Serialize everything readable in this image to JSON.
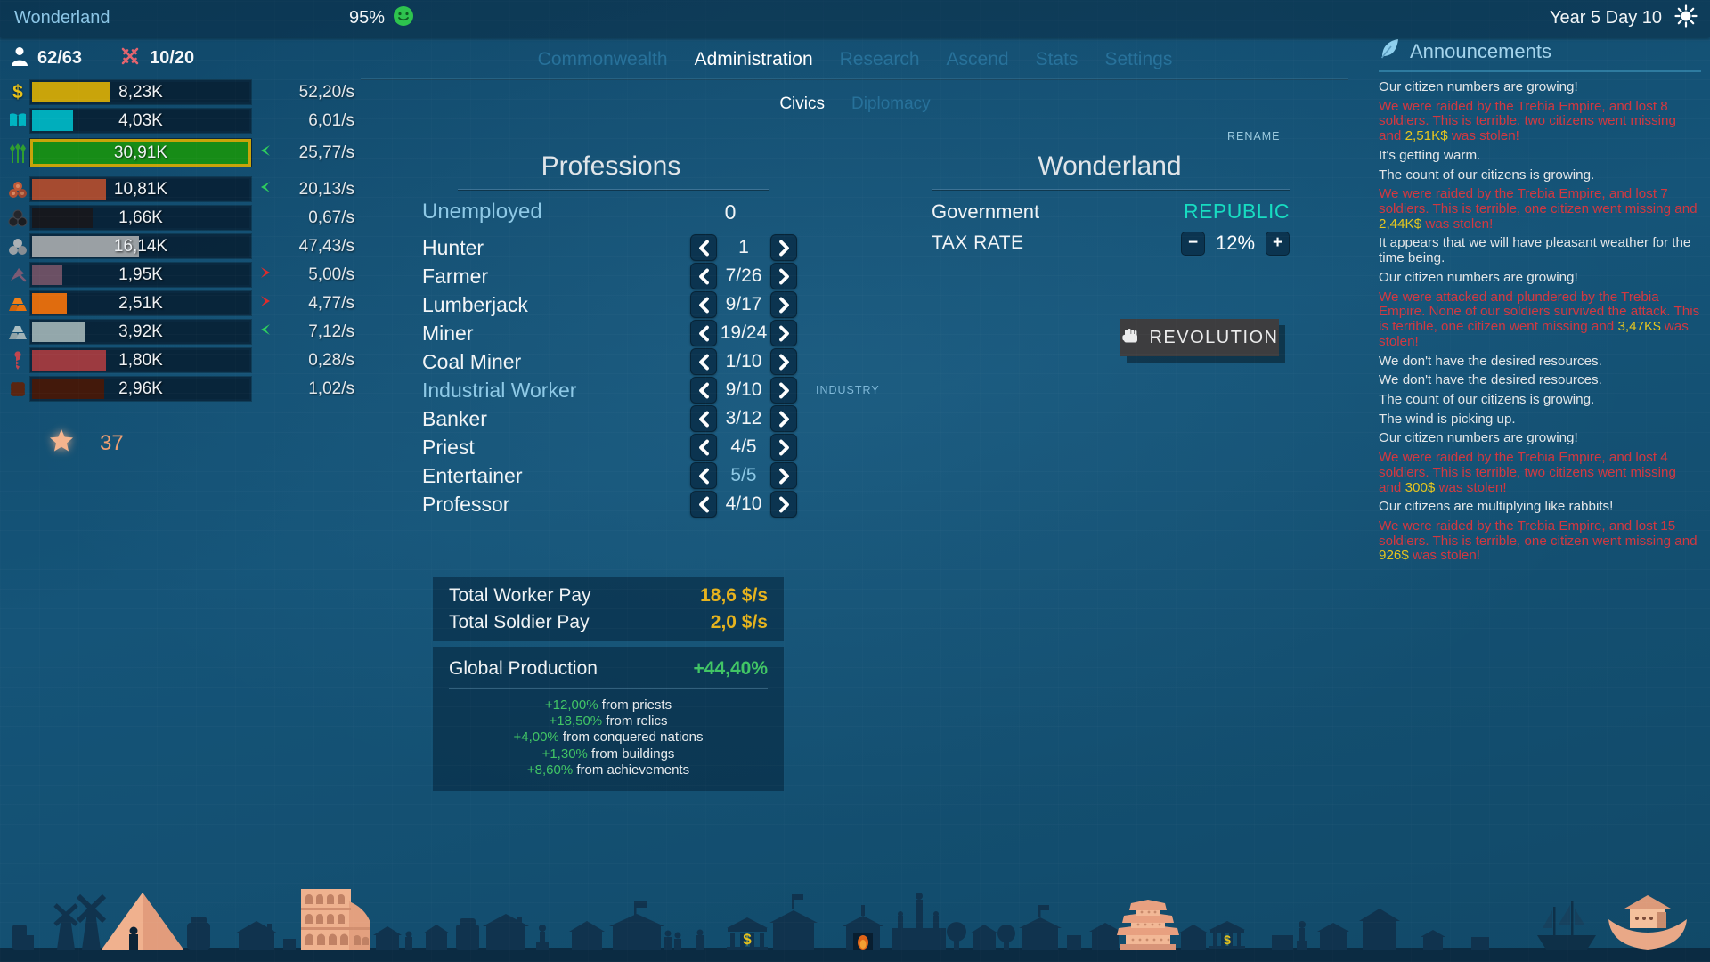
{
  "colors": {
    "accent_blue": "#8ec9e6",
    "cyan": "#17dcc1",
    "gold_border": "#c8a40a",
    "pay_yellow": "#e6b31e",
    "green": "#41c565",
    "alert_red": "#d23840",
    "alert_yellow": "#e6c51e"
  },
  "topbar": {
    "title": "Wonderland",
    "happiness": "95%",
    "date": "Year 5 Day 10"
  },
  "population": {
    "citizens": "62/63",
    "soldiers": "10/20"
  },
  "resources": [
    {
      "name": "money",
      "icon": "money-icon",
      "value": "8,23K",
      "rate": "52,20/s",
      "fill_pct": 36,
      "bar_color": "#c9a40a",
      "trend": null,
      "highlighted": false
    },
    {
      "name": "research",
      "icon": "book-icon",
      "value": "4,03K",
      "rate": "6,01/s",
      "fill_pct": 19,
      "bar_color": "#00aebc",
      "trend": null,
      "highlighted": false
    },
    {
      "name": "food",
      "icon": "wheat-icon",
      "value": "30,91K",
      "rate": "25,77/s",
      "fill_pct": 100,
      "bar_color": "#178c17",
      "trend": "down",
      "highlighted": true
    },
    {
      "name": "wood",
      "icon": "logs-icon",
      "value": "10,81K",
      "rate": "20,13/s",
      "fill_pct": 34,
      "bar_color": "#a64b30",
      "trend": "down",
      "highlighted": false
    },
    {
      "name": "coal",
      "icon": "coal-icon",
      "value": "1,66K",
      "rate": "0,67/s",
      "fill_pct": 28,
      "bar_color": "#17181c",
      "trend": null,
      "highlighted": false
    },
    {
      "name": "stone",
      "icon": "stone-icon",
      "value": "16,14K",
      "rate": "47,43/s",
      "fill_pct": 49,
      "bar_color": "#9aa0a4",
      "trend": null,
      "highlighted": false
    },
    {
      "name": "copper",
      "icon": "trowel-icon",
      "value": "1,95K",
      "rate": "5,00/s",
      "fill_pct": 14,
      "bar_color": "#6b5064",
      "trend": "up",
      "highlighted": false
    },
    {
      "name": "gold",
      "icon": "gold-bars-icon",
      "value": "2,51K",
      "rate": "4,77/s",
      "fill_pct": 16,
      "bar_color": "#e06c0e",
      "trend": "up",
      "highlighted": false
    },
    {
      "name": "iron",
      "icon": "iron-bars-icon",
      "value": "3,92K",
      "rate": "7,12/s",
      "fill_pct": 24,
      "bar_color": "#93a7ab",
      "trend": "down",
      "highlighted": false
    },
    {
      "name": "tools",
      "icon": "screw-icon",
      "value": "1,80K",
      "rate": "0,28/s",
      "fill_pct": 34,
      "bar_color": "#9c3a40",
      "trend": null,
      "highlighted": false
    },
    {
      "name": "leather",
      "icon": "leather-icon",
      "value": "2,96K",
      "rate": "1,02/s",
      "fill_pct": 33,
      "bar_color": "#43190b",
      "trend": null,
      "highlighted": false
    }
  ],
  "prestige": {
    "stars": "37"
  },
  "tabs": [
    {
      "label": "Commonwealth",
      "active": false
    },
    {
      "label": "Administration",
      "active": true
    },
    {
      "label": "Research",
      "active": false
    },
    {
      "label": "Ascend",
      "active": false
    },
    {
      "label": "Stats",
      "active": false
    },
    {
      "label": "Settings",
      "active": false
    }
  ],
  "subtabs": [
    {
      "label": "Civics",
      "active": true
    },
    {
      "label": "Diplomacy",
      "active": false
    }
  ],
  "professions": {
    "title": "Professions",
    "unemployed_label": "Unemployed",
    "unemployed_count": "0",
    "rows": [
      {
        "name": "Hunter",
        "count": "1"
      },
      {
        "name": "Farmer",
        "count": "7/26"
      },
      {
        "name": "Lumberjack",
        "count": "9/17"
      },
      {
        "name": "Miner",
        "count": "19/24"
      },
      {
        "name": "Coal Miner",
        "count": "1/10"
      },
      {
        "name": "Industrial Worker",
        "count": "9/10",
        "name_accent": true,
        "tag": "INDUSTRY"
      },
      {
        "name": "Banker",
        "count": "3/12"
      },
      {
        "name": "Priest",
        "count": "4/5"
      },
      {
        "name": "Entertainer",
        "count": "5/5",
        "count_accent": true
      },
      {
        "name": "Professor",
        "count": "4/10"
      }
    ]
  },
  "civics": {
    "rename": "RENAME",
    "title": "Wonderland",
    "government_label": "Government",
    "government_value": "REPUBLIC",
    "tax_label": "TAX RATE",
    "tax_value": "12%",
    "tax_minus": "−",
    "tax_plus": "+",
    "revolution_label": "REVOLUTION"
  },
  "pay": {
    "worker_label": "Total Worker Pay",
    "worker_value": "18,6 $/s",
    "soldier_label": "Total Soldier Pay",
    "soldier_value": "2,0 $/s"
  },
  "production": {
    "label": "Global Production",
    "value": "+44,40%",
    "breakdown": [
      {
        "pct": "+12,00%",
        "source": "from priests"
      },
      {
        "pct": "+18,50%",
        "source": "from relics"
      },
      {
        "pct": "+4,00%",
        "source": "from conquered nations"
      },
      {
        "pct": "+1,30%",
        "source": "from buildings"
      },
      {
        "pct": "+8,60%",
        "source": "from achievements"
      }
    ]
  },
  "announcements": {
    "title": "Announcements",
    "items": [
      {
        "segments": [
          {
            "t": "Our citizen numbers are growing!",
            "c": "w"
          }
        ]
      },
      {
        "segments": [
          {
            "t": "We were raided by the Trebia Empire, and lost 8 soldiers. This is terrible, two citizens went missing and ",
            "c": "r"
          },
          {
            "t": "2,51K$",
            "c": "y"
          },
          {
            "t": " was stolen!",
            "c": "r"
          }
        ]
      },
      {
        "segments": [
          {
            "t": "It's getting warm.",
            "c": "w"
          }
        ]
      },
      {
        "segments": [
          {
            "t": "The count of our citizens is growing.",
            "c": "w"
          }
        ]
      },
      {
        "segments": [
          {
            "t": "We were raided by the Trebia Empire, and lost 7 soldiers. This is terrible, one citizen went missing and ",
            "c": "r"
          },
          {
            "t": "2,44K$",
            "c": "y"
          },
          {
            "t": " was stolen!",
            "c": "r"
          }
        ]
      },
      {
        "segments": [
          {
            "t": "It appears that we will have pleasant weather for the time being.",
            "c": "w"
          }
        ]
      },
      {
        "segments": [
          {
            "t": "Our citizen numbers are growing!",
            "c": "w"
          }
        ]
      },
      {
        "segments": [
          {
            "t": "We were attacked and plundered by the Trebia Empire. None of our soldiers survived the attack. This is terrible, one citizen went missing and ",
            "c": "r"
          },
          {
            "t": "3,47K$",
            "c": "y"
          },
          {
            "t": " was stolen!",
            "c": "r"
          }
        ]
      },
      {
        "segments": [
          {
            "t": "We don't have the desired resources.",
            "c": "w"
          }
        ]
      },
      {
        "segments": [
          {
            "t": "We don't have the desired resources.",
            "c": "w"
          }
        ]
      },
      {
        "segments": [
          {
            "t": "The count of our citizens is growing.",
            "c": "w"
          }
        ]
      },
      {
        "segments": [
          {
            "t": "The wind is picking up.",
            "c": "w"
          }
        ]
      },
      {
        "segments": [
          {
            "t": "Our citizen numbers are growing!",
            "c": "w"
          }
        ]
      },
      {
        "segments": [
          {
            "t": "We were raided by the Trebia Empire, and lost 4 soldiers. This is terrible, two citizens went missing and ",
            "c": "r"
          },
          {
            "t": "300$",
            "c": "y"
          },
          {
            "t": " was stolen!",
            "c": "r"
          }
        ]
      },
      {
        "segments": [
          {
            "t": "Our citizens are multiplying like rabbits!",
            "c": "w"
          }
        ]
      },
      {
        "segments": [
          {
            "t": "We were raided by the Trebia Empire, and lost 15 soldiers. This is terrible, one citizen went missing and ",
            "c": "r"
          },
          {
            "t": "926$",
            "c": "y"
          },
          {
            "t": " was stolen!",
            "c": "r"
          }
        ]
      }
    ]
  }
}
